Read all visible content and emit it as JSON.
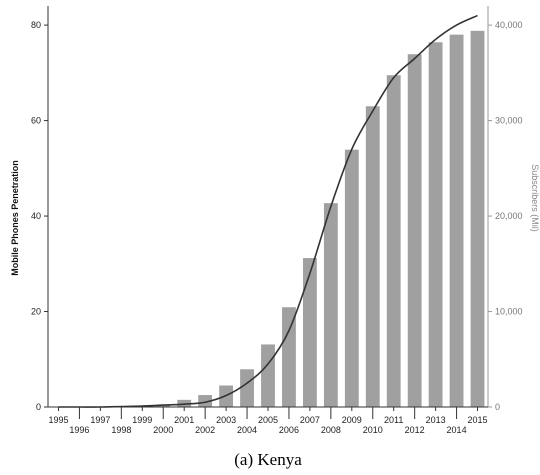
{
  "chart_data": {
    "type": "bar",
    "caption": "(a) Kenya",
    "categories": [
      "1995",
      "1996",
      "1997",
      "1998",
      "1999",
      "2000",
      "2001",
      "2002",
      "2003",
      "2004",
      "2005",
      "2006",
      "2007",
      "2008",
      "2009",
      "2010",
      "2011",
      "2012",
      "2013",
      "2014",
      "2015"
    ],
    "y_left": {
      "label": "Mobile Phones Penetration",
      "range": [
        0,
        84
      ],
      "ticks": [
        0,
        20,
        40,
        60,
        80
      ],
      "tick_labels": [
        "0",
        "20",
        "40",
        "60",
        "80"
      ]
    },
    "y_right": {
      "label": "Subscribers (Mil)",
      "range": [
        0,
        42000
      ],
      "ticks": [
        0,
        10000,
        20000,
        30000,
        40000
      ],
      "tick_labels": [
        "0",
        "10,000",
        "20,000",
        "30,000",
        "40,000"
      ]
    },
    "series": [
      {
        "kind": "bar",
        "axis": "left",
        "color": "#a0a0a0",
        "values": [
          0.1,
          0.1,
          0.1,
          0.1,
          0.2,
          0.4,
          1.5,
          2.5,
          4.5,
          7.9,
          13.1,
          20.9,
          31.2,
          42.7,
          53.9,
          63.0,
          69.5,
          73.9,
          76.4,
          78.0,
          78.8
        ]
      },
      {
        "kind": "line",
        "axis": "right",
        "color": "#333333",
        "values": [
          0,
          0,
          0,
          50,
          100,
          200,
          300,
          500,
          1200,
          2500,
          4500,
          8000,
          14000,
          21000,
          27000,
          31000,
          34500,
          36500,
          38500,
          40000,
          41000
        ]
      }
    ]
  }
}
